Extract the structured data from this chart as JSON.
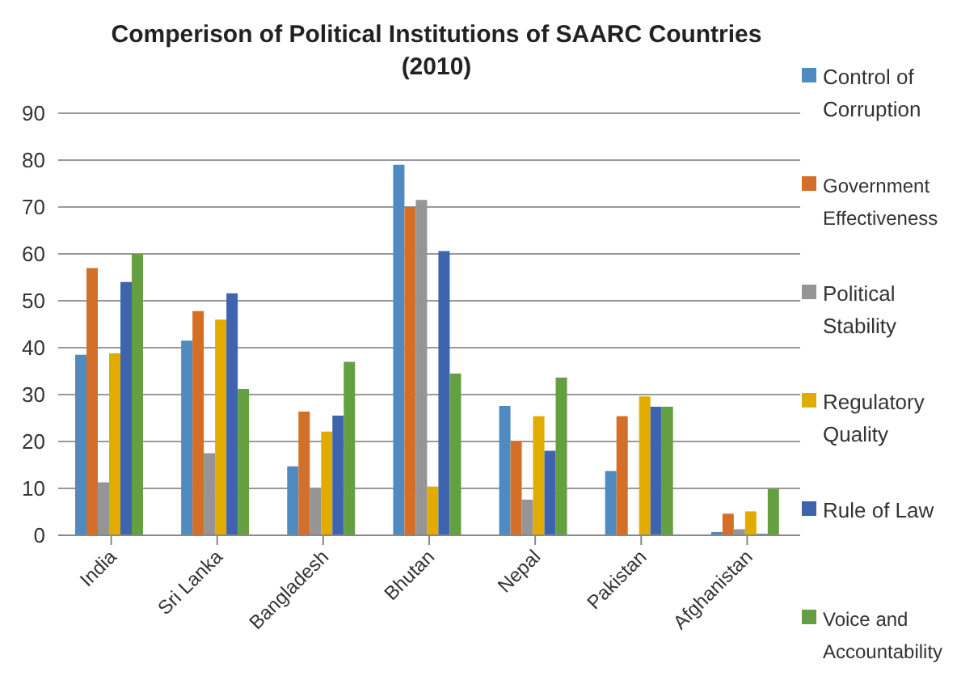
{
  "chart_data": {
    "type": "bar",
    "title": "Comperison of Political Institutions of SAARC Countries (2010)",
    "categories": [
      "India",
      "Sri Lanka",
      "Bangladesh",
      "Bhutan",
      "Nepal",
      "Pakistan",
      "Afghanistan"
    ],
    "series": [
      {
        "name": "Control of Corruption",
        "color": "#4f8bc0",
        "values": [
          38.5,
          41.5,
          14.7,
          79,
          27.6,
          13.7,
          0.7
        ]
      },
      {
        "name": "Government Effectiveness",
        "color": "#d46f2a",
        "values": [
          57,
          47.8,
          26.4,
          70,
          20.1,
          25.4,
          4.6
        ]
      },
      {
        "name": "Political Stability",
        "color": "#959595",
        "values": [
          11.3,
          17.5,
          10.1,
          71.5,
          7.6,
          null,
          1.3
        ]
      },
      {
        "name": "Regulatory Quality",
        "color": "#e2ab00",
        "values": [
          38.8,
          46,
          22.1,
          10.4,
          25.4,
          29.6,
          5.1
        ]
      },
      {
        "name": "Rule of Law",
        "color": "#3e64ae",
        "values": [
          54,
          51.6,
          25.5,
          60.6,
          18,
          27.4,
          0.3
        ]
      },
      {
        "name": "Voice and Accountability",
        "color": "#64a040",
        "values": [
          60,
          31.2,
          37,
          34.5,
          33.6,
          27.4,
          9.9
        ]
      }
    ],
    "ylim": [
      0,
      90
    ],
    "yticks": [
      0,
      10,
      20,
      30,
      40,
      50,
      60,
      70,
      80,
      90
    ],
    "grid": "y",
    "legend": "right"
  }
}
